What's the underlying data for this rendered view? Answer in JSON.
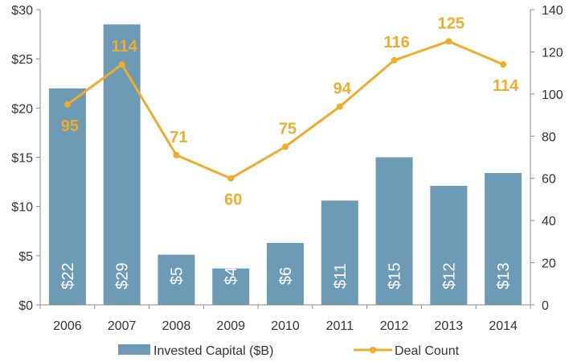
{
  "chart_data": {
    "type": "bar",
    "categories": [
      "2006",
      "2007",
      "2008",
      "2009",
      "2010",
      "2011",
      "2012",
      "2013",
      "2014"
    ],
    "series": [
      {
        "name": "Invested Capital ($B)",
        "type": "bar",
        "axis": "left",
        "values": [
          22,
          28.5,
          5.1,
          3.7,
          6.3,
          10.6,
          15.0,
          12.1,
          13.4
        ],
        "data_labels": [
          "$22",
          "$29",
          "$5",
          "$4",
          "$6",
          "$11",
          "$15",
          "$12",
          "$13"
        ],
        "color": "#6d9ab5"
      },
      {
        "name": "Deal Count",
        "type": "line",
        "axis": "right",
        "values": [
          95,
          114,
          71,
          60,
          75,
          94,
          116,
          125,
          114
        ],
        "data_labels": [
          "95",
          "114",
          "71",
          "60",
          "75",
          "94",
          "116",
          "125",
          "114"
        ],
        "color": "#f0ac2b"
      }
    ],
    "left_axis": {
      "ylim": [
        0,
        30
      ],
      "ticks": [
        0,
        5,
        10,
        15,
        20,
        25,
        30
      ],
      "tick_labels": [
        "$0",
        "$5",
        "$10",
        "$15",
        "$20",
        "$25",
        "$30"
      ]
    },
    "right_axis": {
      "ylim": [
        0,
        140
      ],
      "ticks": [
        0,
        20,
        40,
        60,
        80,
        100,
        120,
        140
      ],
      "tick_labels": [
        "0",
        "20",
        "40",
        "60",
        "80",
        "100",
        "120",
        "140"
      ]
    },
    "grid": false,
    "legend": "bottom"
  }
}
